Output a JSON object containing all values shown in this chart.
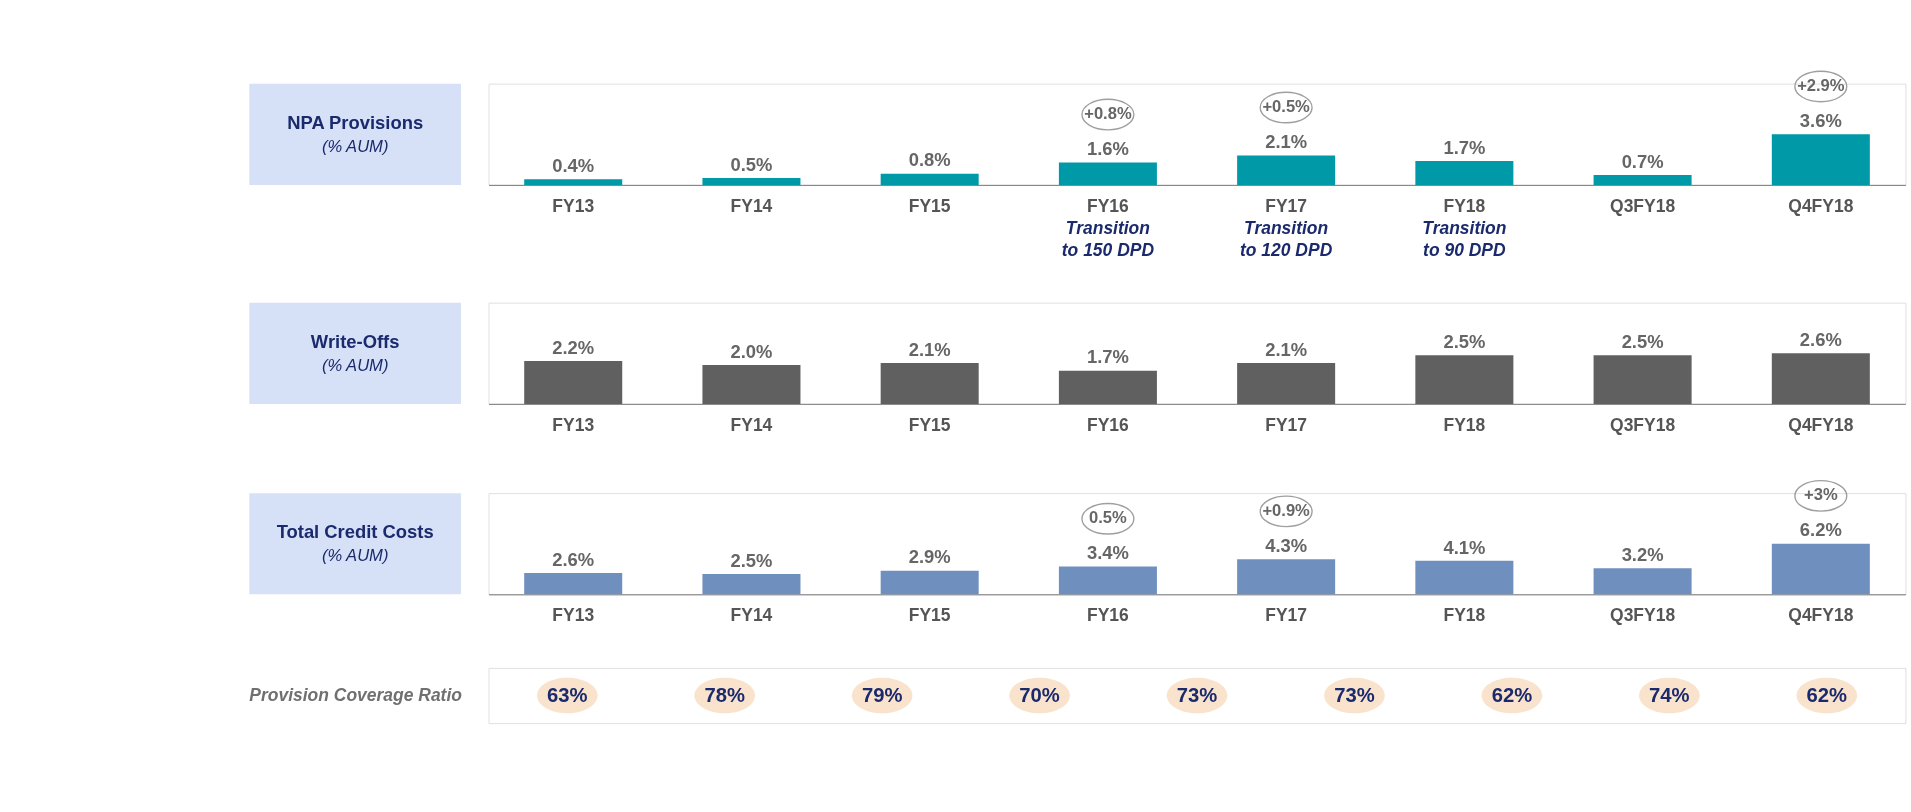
{
  "chart_data": [
    {
      "type": "bar",
      "title": "NPA Provisions",
      "subtitle": "(% AUM)",
      "categories": [
        "FY13",
        "FY14",
        "FY15",
        "FY16",
        "FY17",
        "FY18",
        "Q3FY18",
        "Q4FY18"
      ],
      "values": [
        0.4,
        0.5,
        0.8,
        1.6,
        2.1,
        1.7,
        0.7,
        3.6
      ],
      "value_labels": [
        "0.4%",
        "0.5%",
        "0.8%",
        "1.6%",
        "2.1%",
        "1.7%",
        "0.7%",
        "3.6%"
      ],
      "color": "#0099a8",
      "data_labels": true,
      "annotations": [
        {
          "text": "+0.8%",
          "x": "FY16",
          "y": 1.6
        },
        {
          "text": "+0.5%",
          "x": "FY17",
          "y": 2.1
        },
        {
          "text": "+2.9%",
          "x": "Q4FY18",
          "y": 3.6
        },
        "Transition to 150 DPD",
        "Transition to 120 DPD",
        "Transition to 90 DPD"
      ]
    },
    {
      "type": "bar",
      "title": "Write-Offs",
      "subtitle": "(% AUM)",
      "categories": [
        "FY13",
        "FY14",
        "FY15",
        "FY16",
        "FY17",
        "FY18",
        "Q3FY18",
        "Q4FY18"
      ],
      "values": [
        2.2,
        2.0,
        2.1,
        1.7,
        2.1,
        2.5,
        2.5,
        2.6
      ],
      "value_labels": [
        "2.2%",
        "2.0%",
        "2.1%",
        "1.7%",
        "2.1%",
        "2.5%",
        "2.5%",
        "2.6%"
      ],
      "color": "#606060",
      "data_labels": true
    },
    {
      "type": "bar",
      "title": "Total Credit Costs",
      "subtitle": "(% AUM)",
      "categories": [
        "FY13",
        "FY14",
        "FY15",
        "FY16",
        "FY17",
        "FY18",
        "Q3FY18",
        "Q4FY18"
      ],
      "values": [
        2.6,
        2.5,
        2.9,
        3.4,
        4.3,
        4.1,
        3.2,
        6.2
      ],
      "value_labels": [
        "2.6%",
        "2.5%",
        "2.9%",
        "3.4%",
        "4.3%",
        "4.1%",
        "3.2%",
        "6.2%"
      ],
      "color": "#6f8fbf",
      "data_labels": true,
      "annotations": [
        {
          "text": "0.5%",
          "x": "FY16",
          "y": 3.4
        },
        {
          "text": "+0.9%",
          "x": "FY17",
          "y": 4.3
        },
        {
          "text": "+3%",
          "x": "Q4FY18",
          "y": 6.2
        }
      ]
    },
    {
      "type": "other",
      "title": "Provision Coverage Ratio",
      "annotations": [
        "63%",
        "78%",
        "79%",
        "70%",
        "73%",
        "73%",
        "62%",
        "74%",
        "62%"
      ]
    }
  ]
}
